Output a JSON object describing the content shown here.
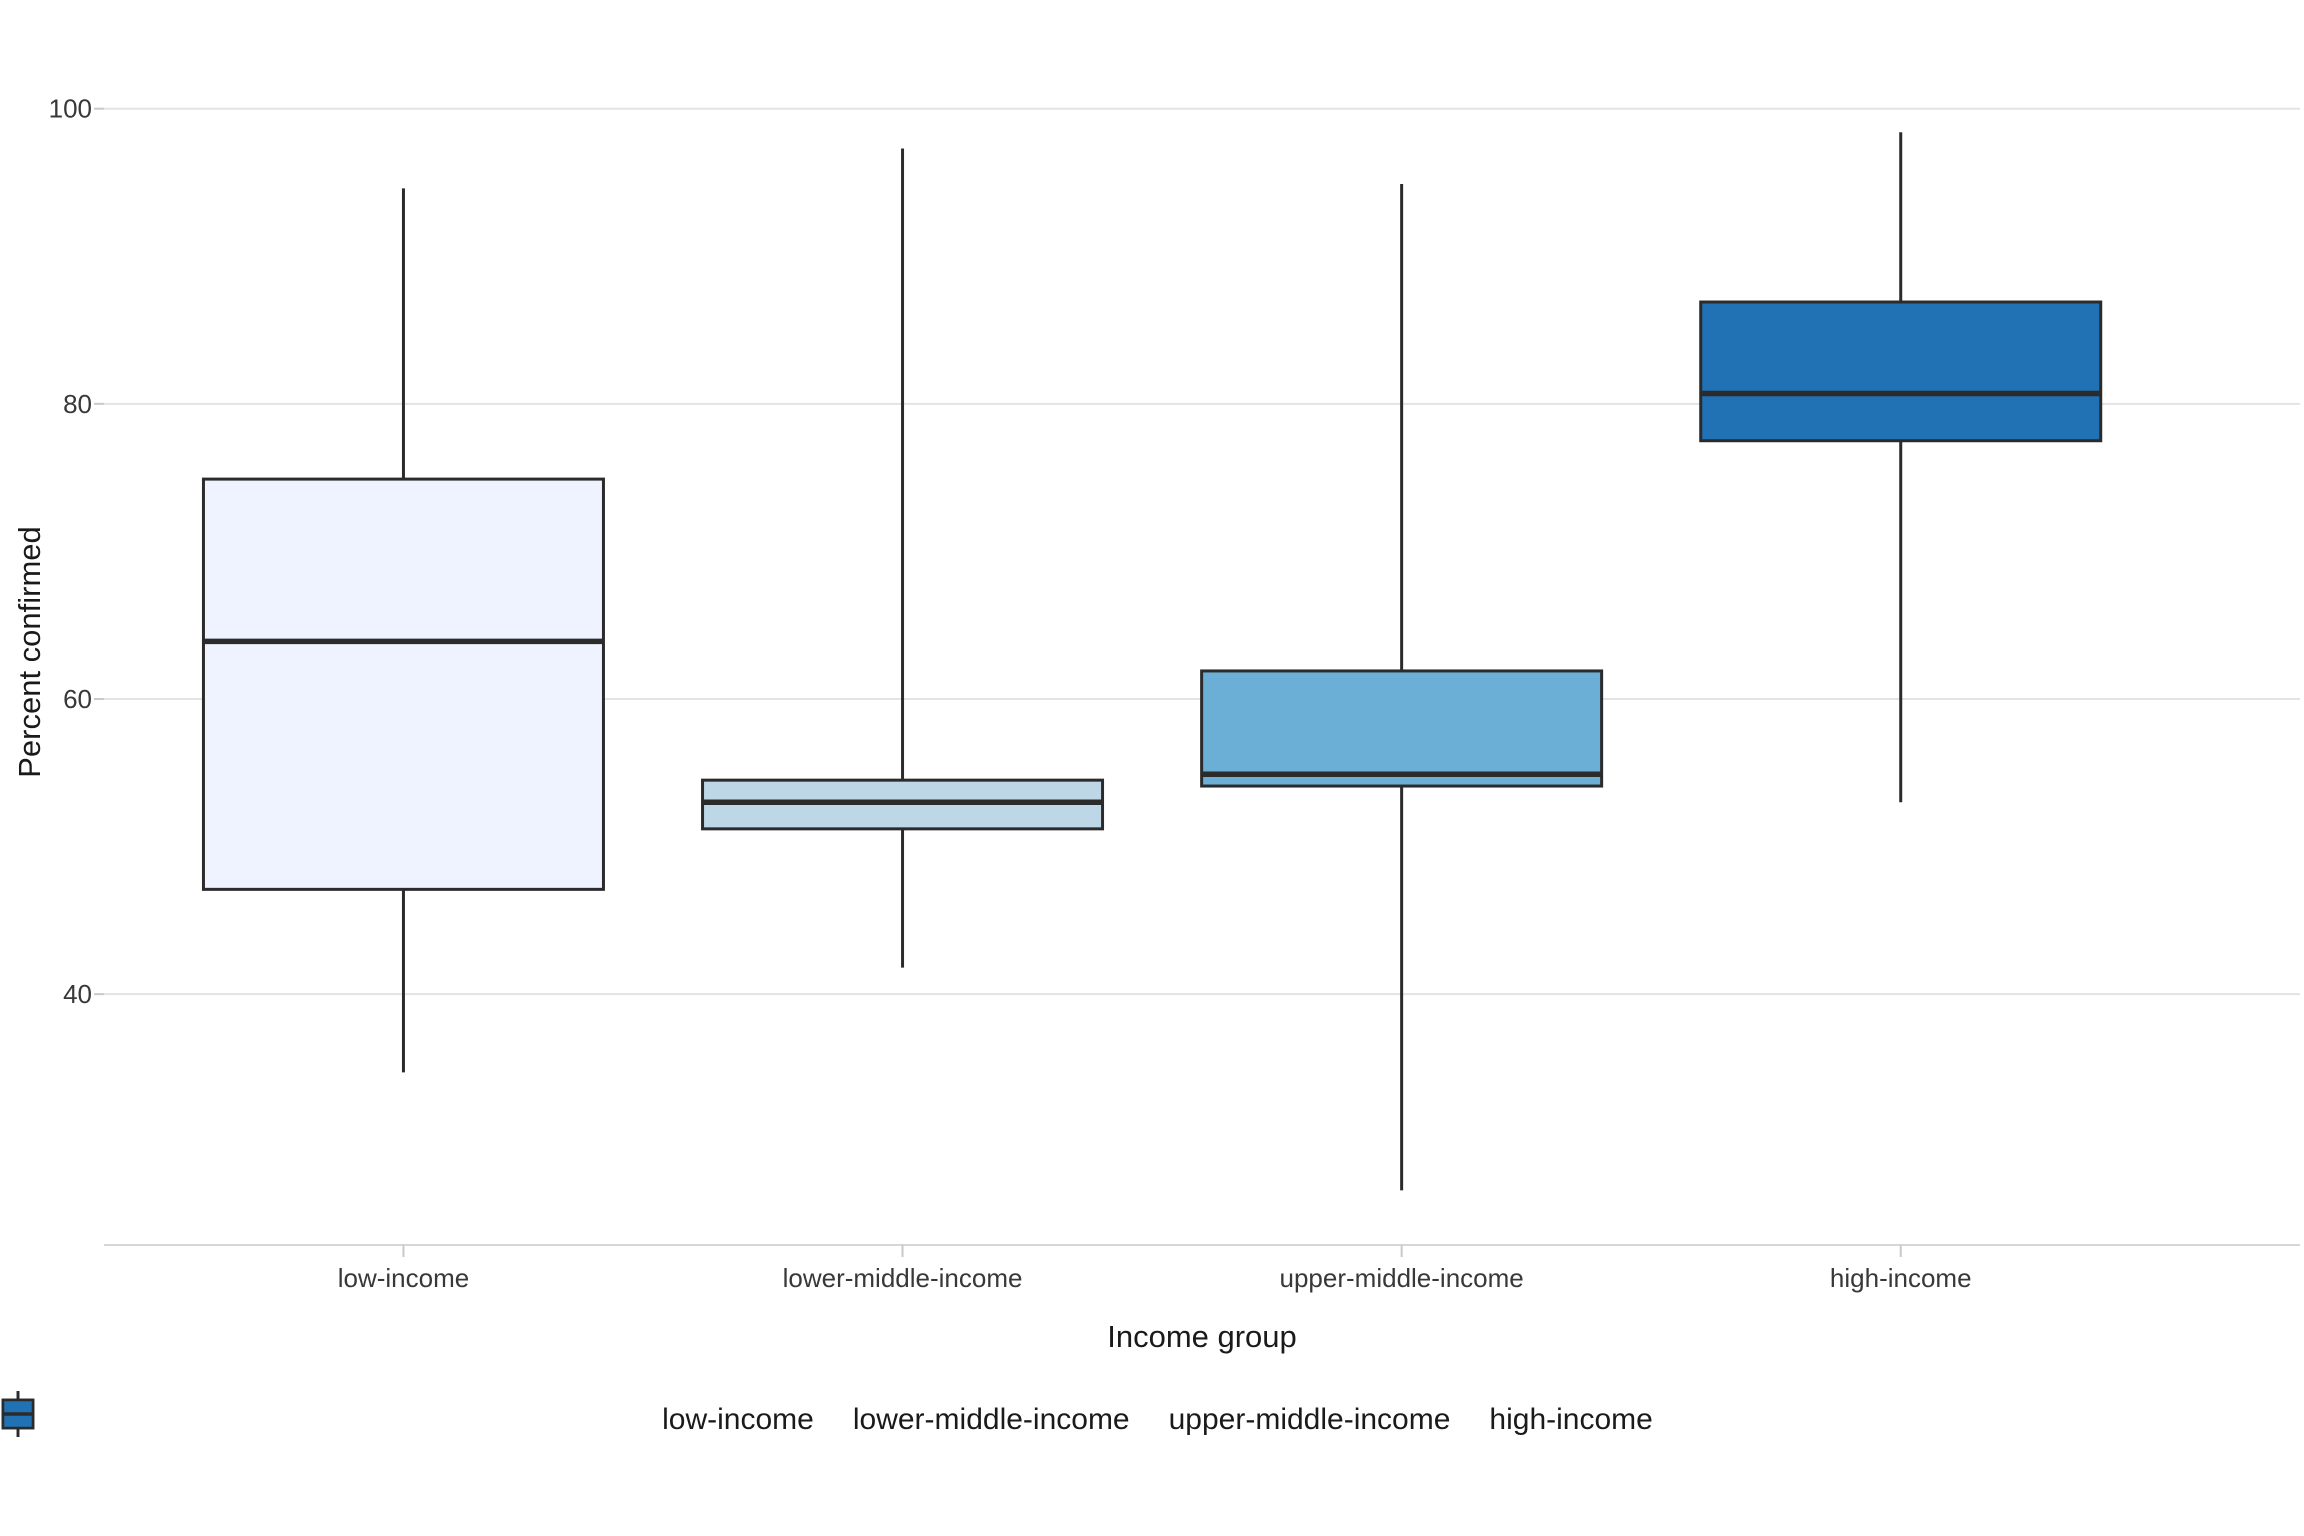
{
  "chart_data": {
    "type": "boxplot",
    "title": "",
    "xlabel": "Income group",
    "ylabel": "Percent confirmed",
    "categories": [
      "low-income",
      "lower-middle-income",
      "upper-middle-income",
      "high-income"
    ],
    "series": [
      {
        "name": "low-income",
        "min": 34.7,
        "q1": 47.1,
        "median": 63.9,
        "q3": 74.9,
        "max": 94.6,
        "fill": "#EFF3FF"
      },
      {
        "name": "lower-middle-income",
        "min": 41.8,
        "q1": 51.2,
        "median": 53.0,
        "q3": 54.5,
        "max": 97.3,
        "fill": "#BDD7E7"
      },
      {
        "name": "upper-middle-income",
        "min": 26.7,
        "q1": 54.1,
        "median": 54.9,
        "q3": 61.9,
        "max": 94.9,
        "fill": "#6BAED6"
      },
      {
        "name": "high-income",
        "min": 53.0,
        "q1": 77.5,
        "median": 80.7,
        "q3": 86.9,
        "max": 98.4,
        "fill": "#2171B5"
      }
    ],
    "yticks": [
      40,
      60,
      80,
      100
    ],
    "ylim": [
      23.0,
      103.3
    ],
    "grid": "horizontal-major-only",
    "legend_position": "bottom",
    "legend_items": [
      "low-income",
      "lower-middle-income",
      "upper-middle-income",
      "high-income"
    ]
  },
  "colors": {
    "box_border": "#2B2B2B",
    "median_line": "#2B2B2B",
    "gridline": "#E3E3E3",
    "axis_line": "#D6D6D6",
    "tick_mark": "#C9C9C9",
    "tick_label": "#383838",
    "axis_title": "#1A1A1A",
    "background": "#FFFFFF"
  }
}
